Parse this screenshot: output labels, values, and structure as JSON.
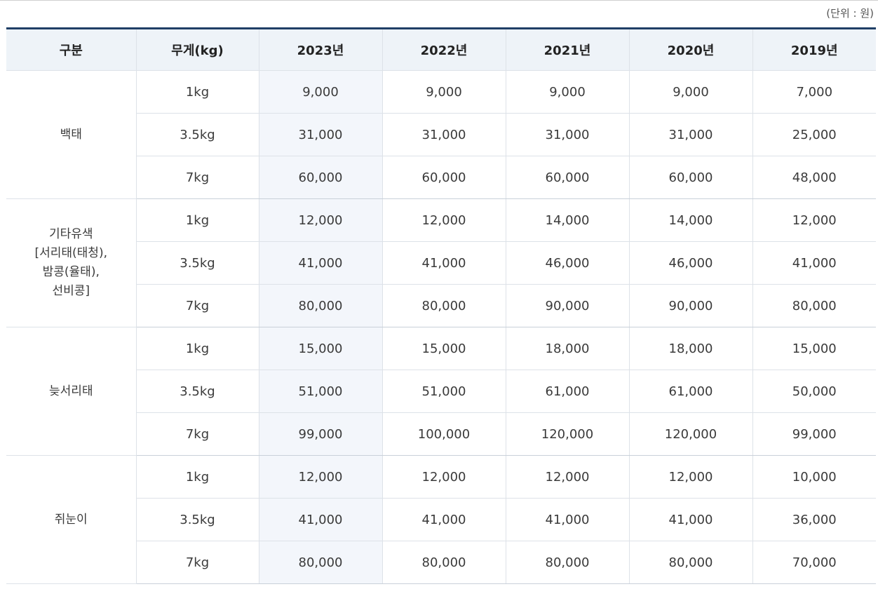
{
  "unit_note": "(단위 : 원)",
  "headers": [
    "구분",
    "무게(kg)",
    "2023년",
    "2022년",
    "2021년",
    "2020년",
    "2019년"
  ],
  "groups": [
    {
      "category": "백태",
      "rows": [
        {
          "weight": "1kg",
          "values": [
            "9,000",
            "9,000",
            "9,000",
            "9,000",
            "7,000"
          ]
        },
        {
          "weight": "3.5kg",
          "values": [
            "31,000",
            "31,000",
            "31,000",
            "31,000",
            "25,000"
          ]
        },
        {
          "weight": "7kg",
          "values": [
            "60,000",
            "60,000",
            "60,000",
            "60,000",
            "48,000"
          ]
        }
      ]
    },
    {
      "category": "기타유색\n[서리태(태청),\n밤콩(율태),\n선비콩]",
      "rows": [
        {
          "weight": "1kg",
          "values": [
            "12,000",
            "12,000",
            "14,000",
            "14,000",
            "12,000"
          ]
        },
        {
          "weight": "3.5kg",
          "values": [
            "41,000",
            "41,000",
            "46,000",
            "46,000",
            "41,000"
          ]
        },
        {
          "weight": "7kg",
          "values": [
            "80,000",
            "80,000",
            "90,000",
            "90,000",
            "80,000"
          ]
        }
      ]
    },
    {
      "category": "늦서리태",
      "rows": [
        {
          "weight": "1kg",
          "values": [
            "15,000",
            "15,000",
            "18,000",
            "18,000",
            "15,000"
          ]
        },
        {
          "weight": "3.5kg",
          "values": [
            "51,000",
            "51,000",
            "61,000",
            "61,000",
            "50,000"
          ]
        },
        {
          "weight": "7kg",
          "values": [
            "99,000",
            "100,000",
            "120,000",
            "120,000",
            "99,000"
          ]
        }
      ]
    },
    {
      "category": "쥐눈이",
      "rows": [
        {
          "weight": "1kg",
          "values": [
            "12,000",
            "12,000",
            "12,000",
            "12,000",
            "10,000"
          ]
        },
        {
          "weight": "3.5kg",
          "values": [
            "41,000",
            "41,000",
            "41,000",
            "41,000",
            "36,000"
          ]
        },
        {
          "weight": "7kg",
          "values": [
            "80,000",
            "80,000",
            "80,000",
            "80,000",
            "70,000"
          ]
        }
      ]
    }
  ]
}
